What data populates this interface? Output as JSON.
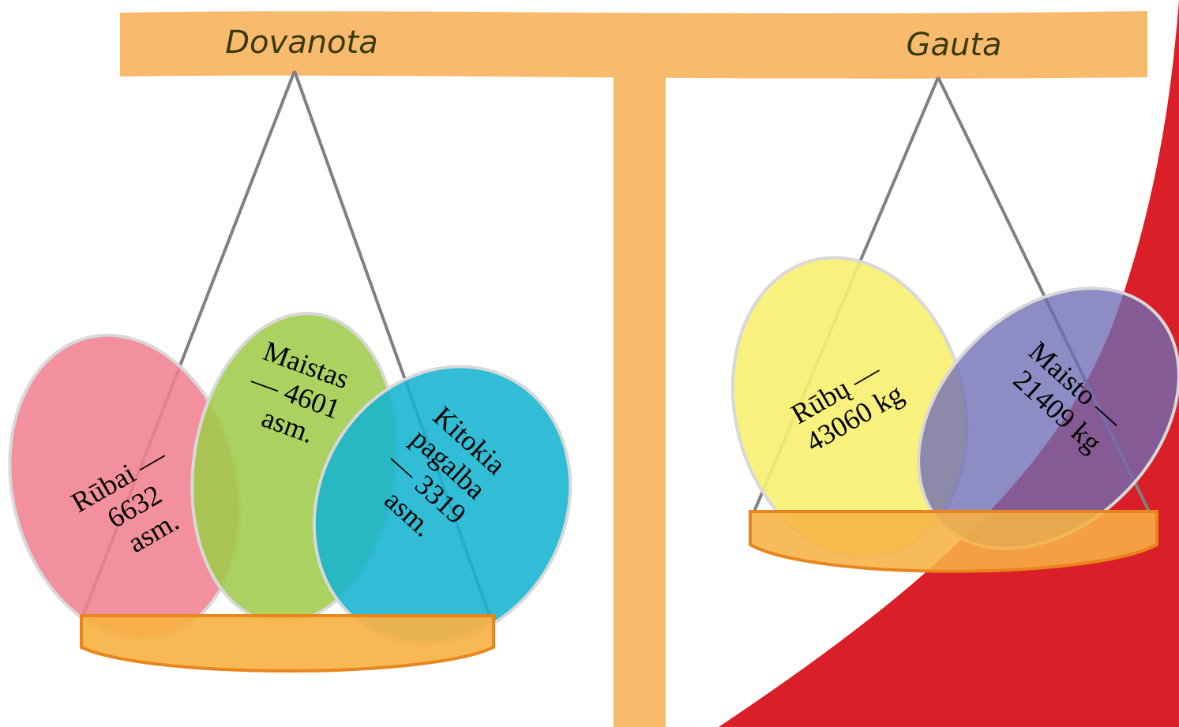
{
  "scale": {
    "left_title": "Dovanota",
    "right_title": "Gauta"
  },
  "left_pan": {
    "items": [
      {
        "lines": [
          "Rūbai —",
          "6632",
          "asm."
        ],
        "color": "#f08290"
      },
      {
        "lines": [
          "Maistas",
          "— 4601",
          "asm."
        ],
        "color": "#9fcb4a"
      },
      {
        "lines": [
          "Kitokia",
          "pagalba",
          "— 3319",
          "asm."
        ],
        "color": "#14b4d0"
      }
    ]
  },
  "right_pan": {
    "items": [
      {
        "lines": [
          "Rūbų —",
          "43060 kg"
        ],
        "color": "#f7ef70"
      },
      {
        "lines": [
          "Maisto —",
          "21409 kg"
        ],
        "color": "#6e6cb4"
      }
    ]
  },
  "colors": {
    "beam": "#f8bb6d",
    "pan": "#f7b244",
    "pan_edge": "#e8851c",
    "string": "#808080",
    "accent_red": "#da1f28"
  }
}
